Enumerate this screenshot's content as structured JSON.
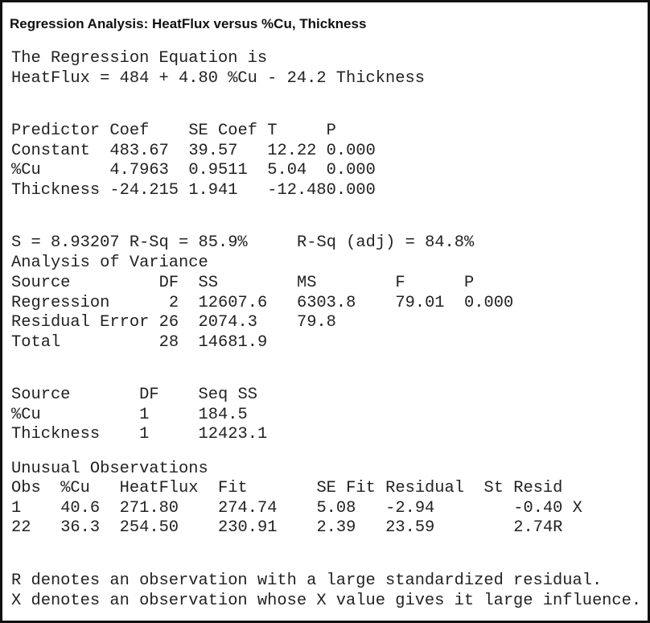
{
  "title": "Regression Analysis: HeatFlux versus %Cu, Thickness",
  "equation": {
    "heading": "The Regression Equation is",
    "text": "HeatFlux = 484 + 4.80 %Cu - 24.2 Thickness"
  },
  "coef_table": {
    "headers": [
      "Predictor",
      "Coef",
      "SE Coef",
      "T",
      "P"
    ],
    "rows": [
      [
        "Constant",
        "483.67",
        "39.57",
        "12.22",
        "0.000"
      ],
      [
        "%Cu",
        "4.7963",
        "0.9511",
        "5.04",
        "0.000"
      ],
      [
        "Thickness",
        "-24.215",
        "1.941",
        "-12.48",
        "0.000"
      ]
    ]
  },
  "fit_stats": {
    "s_rsq": "S = 8.93207 R-Sq = 85.9%",
    "rsq_adj": "R-Sq (adj) = 84.8%"
  },
  "anova": {
    "heading": "Analysis of Variance",
    "headers": [
      "Source",
      "DF",
      "SS",
      "MS",
      "F",
      "P"
    ],
    "rows": [
      [
        "Regression",
        "2",
        "12607.6",
        "6303.8",
        "79.01",
        "0.000"
      ],
      [
        "Residual Error",
        "26",
        "2074.3",
        "79.8",
        "",
        ""
      ],
      [
        "Total",
        "28",
        "14681.9",
        "",
        "",
        ""
      ]
    ]
  },
  "seq_ss": {
    "headers": [
      "Source",
      "DF",
      "Seq SS"
    ],
    "rows": [
      [
        "%Cu",
        "1",
        "184.5"
      ],
      [
        "Thickness",
        "1",
        "12423.1"
      ]
    ]
  },
  "unusual": {
    "heading": "Unusual Observations",
    "headers": [
      "Obs",
      "%Cu",
      "HeatFlux",
      "Fit",
      "SE Fit",
      "Residual",
      "St Resid"
    ],
    "rows": [
      [
        "1",
        "40.6",
        "271.80",
        "274.74",
        "5.08",
        "-2.94",
        "-0.40 X"
      ],
      [
        "22",
        "36.3",
        "254.50",
        "230.91",
        "2.39",
        "23.59",
        "2.74R"
      ]
    ]
  },
  "notes": [
    "R denotes an observation with a large standardized residual.",
    "X denotes an observation whose X value gives it large influence."
  ]
}
